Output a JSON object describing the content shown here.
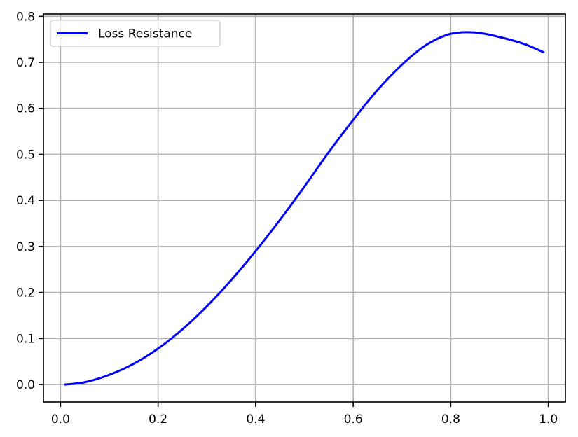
{
  "chart_data": {
    "type": "line",
    "title": "",
    "xlabel": "",
    "ylabel": "",
    "xlim": [
      -0.035,
      1.035
    ],
    "ylim": [
      -0.038,
      0.805
    ],
    "grid": true,
    "legend": "upper-left",
    "x_ticks": [
      {
        "value": 0.0,
        "label": "0.0"
      },
      {
        "value": 0.2,
        "label": "0.2"
      },
      {
        "value": 0.4,
        "label": "0.4"
      },
      {
        "value": 0.6,
        "label": "0.6"
      },
      {
        "value": 0.8,
        "label": "0.8"
      },
      {
        "value": 1.0,
        "label": "1.0"
      }
    ],
    "y_ticks": [
      {
        "value": 0.0,
        "label": "0.0"
      },
      {
        "value": 0.1,
        "label": "0.1"
      },
      {
        "value": 0.2,
        "label": "0.2"
      },
      {
        "value": 0.3,
        "label": "0.3"
      },
      {
        "value": 0.4,
        "label": "0.4"
      },
      {
        "value": 0.5,
        "label": "0.5"
      },
      {
        "value": 0.6,
        "label": "0.6"
      },
      {
        "value": 0.7,
        "label": "0.7"
      },
      {
        "value": 0.8,
        "label": "0.8"
      }
    ],
    "series": [
      {
        "name": "Loss Resistance",
        "color": "#0000ff",
        "x": [
          0.01,
          0.05,
          0.1,
          0.15,
          0.2,
          0.25,
          0.3,
          0.35,
          0.4,
          0.45,
          0.5,
          0.55,
          0.6,
          0.65,
          0.7,
          0.75,
          0.8,
          0.85,
          0.9,
          0.95,
          0.99
        ],
        "y": [
          0.0,
          0.005,
          0.021,
          0.045,
          0.078,
          0.12,
          0.17,
          0.227,
          0.29,
          0.358,
          0.43,
          0.505,
          0.575,
          0.64,
          0.695,
          0.738,
          0.762,
          0.765,
          0.755,
          0.74,
          0.722
        ]
      }
    ]
  }
}
